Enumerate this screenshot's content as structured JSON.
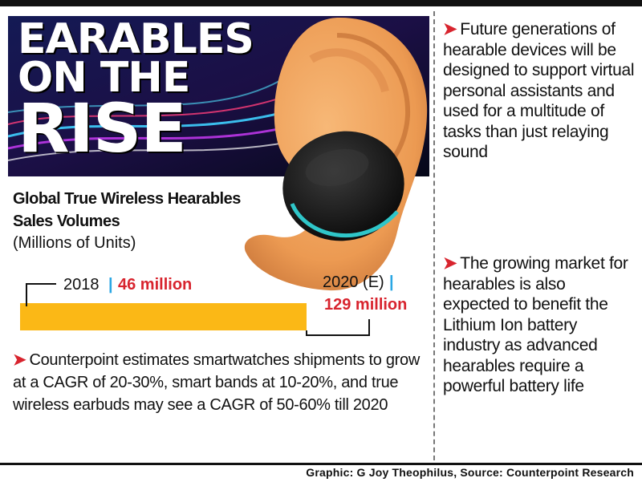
{
  "headline": {
    "line1": "EARABLES",
    "line2": "ON THE",
    "line3": "RISE"
  },
  "colors": {
    "series_2018": "#2aa7e4",
    "series_2020": "#fbb816",
    "accent_red": "#d8242e",
    "skin": "#f0a25f",
    "earbud": "#151515",
    "earbud_light": "#2fc6c9"
  },
  "icons": [
    "ear-illustration",
    "earbud-illustration",
    "red-arrow-icon"
  ],
  "chart_data": {
    "type": "bar",
    "title": "Global True Wireless Hearables Sales Volumes",
    "unit": "(Millions of Units)",
    "categories": [
      "2018",
      "2020 (E)"
    ],
    "values": [
      46,
      129
    ],
    "value_labels": [
      "46 million",
      "129 million"
    ],
    "orientation": "horizontal-stacked-progress",
    "xlim": [
      0,
      129
    ]
  },
  "body": {
    "arrow": "➤",
    "text": "Counterpoint estimates smartwatches shipments to grow at a CAGR of 20-30%, smart bands at 10-20%, and true wireless earbuds may see a CAGR of 50-60% till 2020"
  },
  "notes": [
    {
      "arrow": "➤",
      "text": "Future generations of hearable devices will be designed to support virtual personal assistants and used for a multitude of tasks than just relaying sound"
    },
    {
      "arrow": "➤",
      "text": "The growing market for hearables is also expected to benefit the Lithium Ion battery industry as advanced hearables require a powerful battery life"
    }
  ],
  "credit": "Graphic: G Joy Theophilus, Source: Counterpoint Research"
}
